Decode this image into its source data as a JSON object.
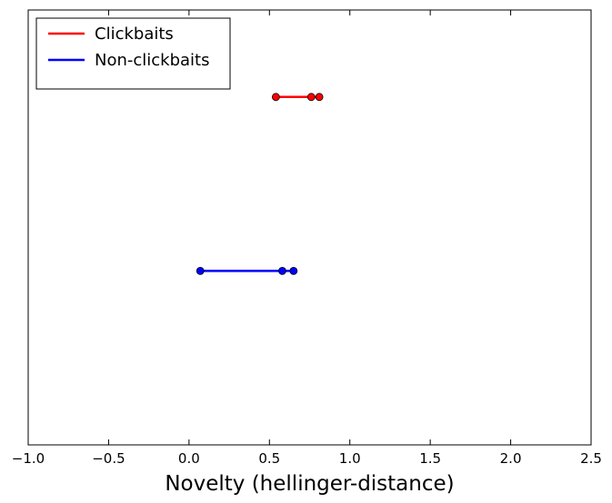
{
  "chart_data": {
    "type": "line",
    "xlabel": "Novelty (hellinger-distance)",
    "ylabel": "",
    "xlim": [
      -1.0,
      2.5
    ],
    "xticks": [
      -1.0,
      -0.5,
      0.0,
      0.5,
      1.0,
      1.5,
      2.0,
      2.5
    ],
    "xtick_labels": [
      "−1.0",
      "−0.5",
      "0.0",
      "0.5",
      "1.0",
      "1.5",
      "2.0",
      "2.5"
    ],
    "ylim": [
      0,
      1
    ],
    "yticks_visible": false,
    "grid": false,
    "legend_position": "top-left",
    "series": [
      {
        "name": "Clickbaits",
        "color": "#ff0000",
        "level": 0.8,
        "x": [
          0.54,
          0.76,
          0.81
        ]
      },
      {
        "name": "Non-clickbaits",
        "color": "#0000ff",
        "level": 0.4,
        "x": [
          0.07,
          0.58,
          0.65
        ]
      }
    ]
  }
}
